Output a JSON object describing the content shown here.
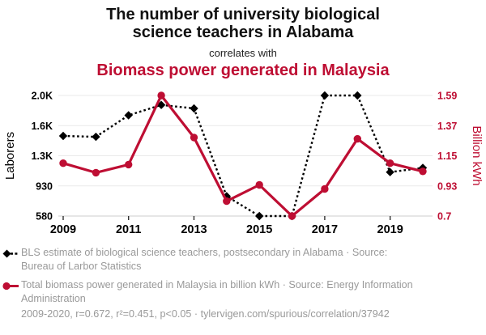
{
  "header": {
    "title": "The number of university biological science teachers in Alabama",
    "connector": "correlates with",
    "subtitle": "Biomass power generated in Malaysia"
  },
  "colors": {
    "accent_red": "#be0e33",
    "series_black": "#000000",
    "legend_gray": "#999999",
    "gridline": "#e9e9e9",
    "axis_line": "#cccccc"
  },
  "chart_data": {
    "type": "line",
    "x": [
      2009,
      2010,
      2011,
      2012,
      2013,
      2014,
      2015,
      2016,
      2017,
      2018,
      2019,
      2020
    ],
    "x_ticks": [
      {
        "year": 2009,
        "label": "2009"
      },
      {
        "year": 2011,
        "label": "2011"
      },
      {
        "year": 2013,
        "label": "2013"
      },
      {
        "year": 2015,
        "label": "2015"
      },
      {
        "year": 2017,
        "label": "2017"
      },
      {
        "year": 2019,
        "label": "2019"
      }
    ],
    "left_axis": {
      "label": "Laborers",
      "min": 580,
      "max": 1980,
      "ticks": [
        {
          "v": 580,
          "label": "580"
        },
        {
          "v": 930,
          "label": "930"
        },
        {
          "v": 1280,
          "label": "1.3K"
        },
        {
          "v": 1630,
          "label": "1.6K"
        },
        {
          "v": 1980,
          "label": "2.0K"
        }
      ]
    },
    "right_axis": {
      "label": "Billion kWh",
      "min": 0.7,
      "max": 1.59,
      "ticks": [
        {
          "v": 0.7,
          "label": "0.7"
        },
        {
          "v": 0.93,
          "label": "0.93"
        },
        {
          "v": 1.15,
          "label": "1.15"
        },
        {
          "v": 1.37,
          "label": "1.37"
        },
        {
          "v": 1.59,
          "label": "1.59"
        }
      ]
    },
    "grid": "horizontal-only",
    "legend_position": "below",
    "series": [
      {
        "name": "BLS estimate of biological science teachers, postsecondary in Alabama",
        "axis": "left",
        "color": "#000000",
        "line": "dotted",
        "marker": "diamond",
        "values": [
          1510,
          1500,
          1750,
          1870,
          1830,
          810,
          580,
          580,
          1980,
          1980,
          1090,
          1140
        ]
      },
      {
        "name": "Total biomass power generated in Malaysia in billion kWh",
        "axis": "right",
        "color": "#be0e33",
        "line": "solid",
        "marker": "circle",
        "values": [
          1.09,
          1.02,
          1.08,
          1.59,
          1.28,
          0.81,
          0.93,
          0.7,
          0.9,
          1.27,
          1.09,
          1.03
        ]
      }
    ]
  },
  "legend": {
    "series1": "BLS estimate of biological science teachers, postsecondary in Alabama · Source: Bureau of Larbor Statistics",
    "series2": "Total biomass power generated in Malaysia in billion kWh · Source: Energy Information Administration"
  },
  "footer": {
    "text": "2009-2020, r=0.672, r²=0.451, p<0.05 · tylervigen.com/spurious/correlation/37942"
  }
}
